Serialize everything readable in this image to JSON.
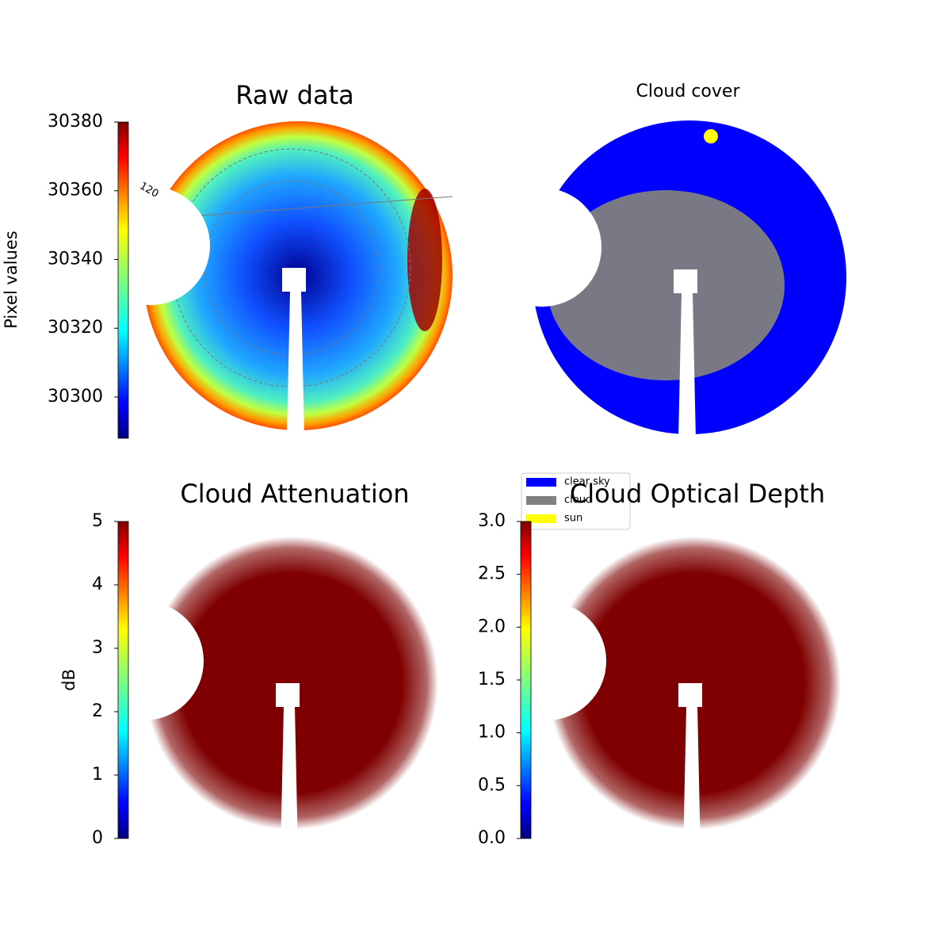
{
  "chart_data": [
    {
      "type": "image",
      "title": "Raw data",
      "colorbar_label": "Pixel values",
      "cmap": "jet",
      "ylim": [
        30288,
        30380
      ],
      "yticks": [
        30300,
        30320,
        30340,
        30360,
        30380
      ],
      "annotations": [
        "120"
      ]
    },
    {
      "type": "image",
      "title": "Cloud cover",
      "cmap": "categorical",
      "series": [
        {
          "name": "clear sky",
          "color": "#0000ff"
        },
        {
          "name": "cloud",
          "color": "#808080"
        },
        {
          "name": "sun",
          "color": "#ffff00"
        }
      ]
    },
    {
      "type": "image",
      "title": "Cloud Attenuation",
      "colorbar_label": "dB",
      "cmap": "jet",
      "ylim": [
        0,
        5
      ],
      "yticks": [
        0,
        1,
        2,
        3,
        4,
        5
      ]
    },
    {
      "type": "image",
      "title": "Cloud Optical Depth",
      "cmap": "jet",
      "ylim": [
        0,
        3
      ],
      "yticks": [
        {
          "value": 0,
          "label": "0.0"
        },
        {
          "value": 0.5,
          "label": "0.5"
        },
        {
          "value": 1,
          "label": "1.0"
        },
        {
          "value": 1.5,
          "label": "1.5"
        },
        {
          "value": 2,
          "label": "2.0"
        },
        {
          "value": 2.5,
          "label": "2.5"
        },
        {
          "value": 3,
          "label": "3.0"
        }
      ]
    }
  ]
}
